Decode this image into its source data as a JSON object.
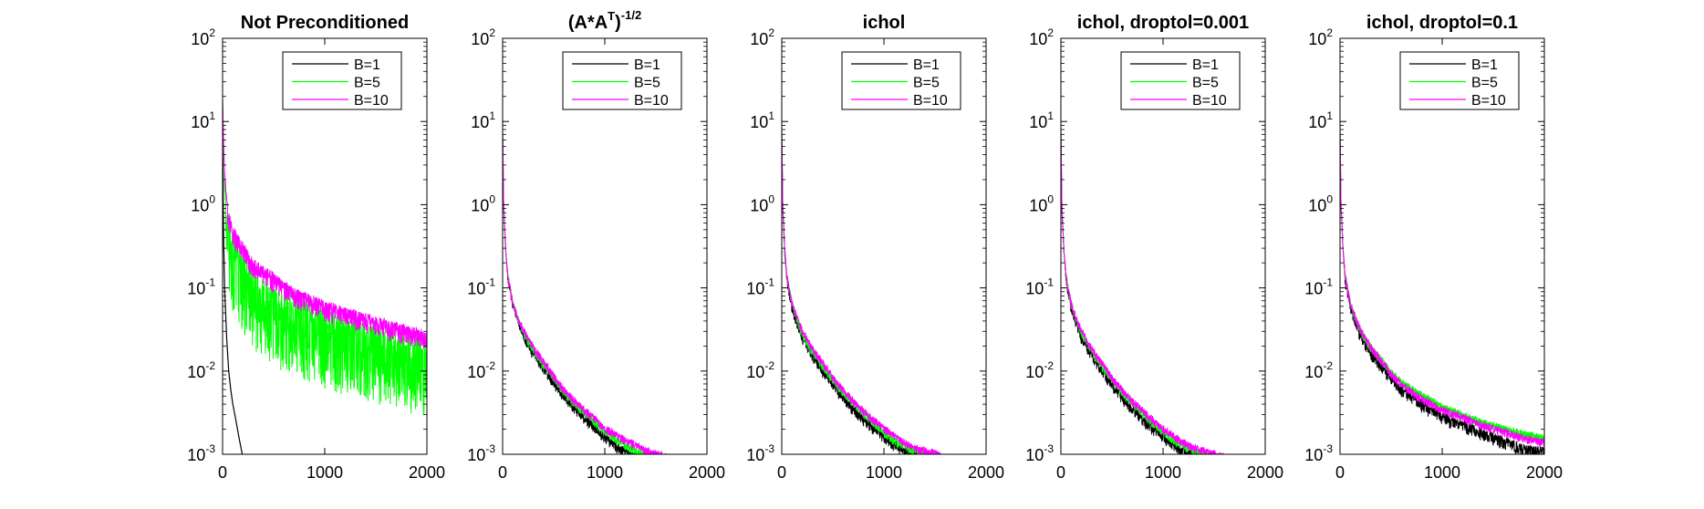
{
  "chart_data": [
    {
      "type": "line",
      "title": "Not Preconditioned",
      "yscale": "log",
      "xlim": [
        0,
        2000
      ],
      "ylim": [
        0.001,
        100
      ],
      "xticks": [
        "0",
        "1000",
        "2000"
      ],
      "yticks": [
        "10^2",
        "10^1",
        "10^0",
        "10^-1",
        "10^-2",
        "10^-3"
      ],
      "legend": {
        "position": "top-right",
        "entries": [
          "B=1",
          "B=5",
          "B=10"
        ]
      },
      "series": [
        {
          "name": "B=1",
          "color": "#000000",
          "x": [
            0,
            5,
            10,
            20,
            40,
            60,
            80,
            100,
            120,
            140,
            160,
            180,
            200
          ],
          "y": [
            10,
            1.5,
            0.4,
            0.1,
            0.025,
            0.01,
            0.006,
            0.004,
            0.003,
            0.0022,
            0.0016,
            0.0012,
            0.0009
          ],
          "noisy": false
        },
        {
          "name": "B=5",
          "color": "#00ff00",
          "x": [
            0,
            5,
            20,
            50,
            100,
            200,
            300,
            500,
            700,
            1000,
            1500,
            2000
          ],
          "y": [
            20,
            10,
            2.5,
            0.8,
            0.45,
            0.25,
            0.15,
            0.1,
            0.08,
            0.055,
            0.035,
            0.025
          ],
          "noisy": true,
          "dips": 1.0
        },
        {
          "name": "B=10",
          "color": "#ff00ff",
          "x": [
            0,
            5,
            20,
            50,
            100,
            200,
            300,
            500,
            700,
            1000,
            1500,
            2000
          ],
          "y": [
            20,
            10,
            2.5,
            0.9,
            0.55,
            0.35,
            0.22,
            0.15,
            0.1,
            0.07,
            0.045,
            0.03
          ],
          "noisy": true,
          "dips": 0.25
        }
      ]
    },
    {
      "type": "line",
      "title": "(A*A^T)^-1/2",
      "title_parts": {
        "base1": "(A*A",
        "sup1": "T",
        "base2": ")",
        "sup2": "-1/2"
      },
      "yscale": "log",
      "xlim": [
        0,
        2000
      ],
      "ylim": [
        0.001,
        100
      ],
      "xticks": [
        "0",
        "1000",
        "2000"
      ],
      "yticks": [
        "10^2",
        "10^1",
        "10^0",
        "10^-1",
        "10^-2",
        "10^-3"
      ],
      "legend": {
        "position": "top-right",
        "entries": [
          "B=1",
          "B=5",
          "B=10"
        ]
      },
      "series": [
        {
          "name": "B=1",
          "color": "#000000",
          "x": [
            0,
            10,
            30,
            50,
            100,
            150,
            200,
            300,
            400,
            500,
            600,
            700,
            800,
            900,
            1000,
            1100,
            1200,
            1300,
            1350
          ],
          "y": [
            8,
            1.0,
            0.3,
            0.15,
            0.07,
            0.045,
            0.03,
            0.018,
            0.012,
            0.008,
            0.0055,
            0.004,
            0.003,
            0.0023,
            0.0018,
            0.0014,
            0.0012,
            0.001,
            0.001
          ],
          "noisy": true,
          "dips": 0.12
        },
        {
          "name": "B=5",
          "color": "#00ff00",
          "x": [
            0,
            10,
            30,
            50,
            100,
            150,
            200,
            300,
            400,
            500,
            600,
            700,
            800,
            900,
            1000,
            1100,
            1200,
            1300,
            1400,
            1500,
            1550
          ],
          "y": [
            8,
            1.0,
            0.3,
            0.15,
            0.07,
            0.045,
            0.032,
            0.02,
            0.013,
            0.009,
            0.006,
            0.0045,
            0.0035,
            0.0027,
            0.002,
            0.0017,
            0.0014,
            0.0012,
            0.0011,
            0.001,
            0.001
          ],
          "noisy": true,
          "dips": 0.1
        },
        {
          "name": "B=10",
          "color": "#ff00ff",
          "x": [
            0,
            10,
            30,
            50,
            100,
            150,
            200,
            300,
            400,
            500,
            600,
            700,
            800,
            900,
            1000,
            1100,
            1200,
            1300,
            1400,
            1500,
            1600
          ],
          "y": [
            8,
            1.0,
            0.3,
            0.15,
            0.07,
            0.047,
            0.034,
            0.021,
            0.014,
            0.0095,
            0.0065,
            0.0048,
            0.0037,
            0.0029,
            0.0022,
            0.0019,
            0.0016,
            0.0014,
            0.0012,
            0.0011,
            0.001
          ],
          "noisy": true,
          "dips": 0.1
        }
      ]
    },
    {
      "type": "line",
      "title": "ichol",
      "yscale": "log",
      "xlim": [
        0,
        2000
      ],
      "ylim": [
        0.001,
        100
      ],
      "xticks": [
        "0",
        "1000",
        "2000"
      ],
      "yticks": [
        "10^2",
        "10^1",
        "10^0",
        "10^-1",
        "10^-2",
        "10^-3"
      ],
      "legend": {
        "position": "top-right",
        "entries": [
          "B=1",
          "B=5",
          "B=10"
        ]
      },
      "series": [
        {
          "name": "B=1",
          "color": "#000000",
          "x": [
            0,
            10,
            30,
            50,
            100,
            150,
            200,
            300,
            400,
            500,
            600,
            700,
            800,
            900,
            1000,
            1100,
            1200,
            1300,
            1400
          ],
          "y": [
            8,
            0.9,
            0.28,
            0.14,
            0.065,
            0.042,
            0.028,
            0.017,
            0.011,
            0.0075,
            0.0052,
            0.0038,
            0.0029,
            0.0022,
            0.0018,
            0.0014,
            0.0012,
            0.0011,
            0.001
          ],
          "noisy": true,
          "dips": 0.12
        },
        {
          "name": "B=5",
          "color": "#00ff00",
          "x": [
            0,
            10,
            30,
            50,
            100,
            150,
            200,
            300,
            400,
            500,
            600,
            700,
            800,
            900,
            1000,
            1100,
            1200,
            1300,
            1400,
            1500,
            1550
          ],
          "y": [
            8,
            1.0,
            0.3,
            0.15,
            0.07,
            0.045,
            0.031,
            0.019,
            0.0125,
            0.0085,
            0.006,
            0.0045,
            0.0034,
            0.0026,
            0.002,
            0.0016,
            0.0014,
            0.0012,
            0.0011,
            0.001,
            0.001
          ],
          "noisy": true,
          "dips": 0.1
        },
        {
          "name": "B=10",
          "color": "#ff00ff",
          "x": [
            0,
            10,
            30,
            50,
            100,
            150,
            200,
            300,
            400,
            500,
            600,
            700,
            800,
            900,
            1000,
            1100,
            1200,
            1300,
            1400,
            1500,
            1600
          ],
          "y": [
            8,
            1.0,
            0.3,
            0.15,
            0.07,
            0.047,
            0.033,
            0.02,
            0.0135,
            0.009,
            0.0063,
            0.0047,
            0.0036,
            0.0028,
            0.0022,
            0.0018,
            0.0015,
            0.0013,
            0.0012,
            0.0011,
            0.001
          ],
          "noisy": true,
          "dips": 0.1
        }
      ]
    },
    {
      "type": "line",
      "title": "ichol, droptol=0.001",
      "yscale": "log",
      "xlim": [
        0,
        2000
      ],
      "ylim": [
        0.001,
        100
      ],
      "xticks": [
        "0",
        "1000",
        "2000"
      ],
      "yticks": [
        "10^2",
        "10^1",
        "10^0",
        "10^-1",
        "10^-2",
        "10^-3"
      ],
      "legend": {
        "position": "top-right",
        "entries": [
          "B=1",
          "B=5",
          "B=10"
        ]
      },
      "series": [
        {
          "name": "B=1",
          "color": "#000000",
          "x": [
            0,
            10,
            30,
            50,
            100,
            150,
            200,
            300,
            400,
            500,
            600,
            700,
            800,
            900,
            1000,
            1100,
            1200,
            1300,
            1400
          ],
          "y": [
            8,
            0.9,
            0.28,
            0.14,
            0.065,
            0.042,
            0.028,
            0.017,
            0.011,
            0.0075,
            0.0052,
            0.0038,
            0.0029,
            0.0022,
            0.0018,
            0.0014,
            0.0012,
            0.0011,
            0.001
          ],
          "noisy": true,
          "dips": 0.12
        },
        {
          "name": "B=5",
          "color": "#00ff00",
          "x": [
            0,
            10,
            30,
            50,
            100,
            150,
            200,
            300,
            400,
            500,
            600,
            700,
            800,
            900,
            1000,
            1100,
            1200,
            1300,
            1400,
            1500,
            1550
          ],
          "y": [
            8,
            1.0,
            0.3,
            0.15,
            0.07,
            0.045,
            0.031,
            0.019,
            0.0125,
            0.0085,
            0.006,
            0.0045,
            0.0034,
            0.0026,
            0.002,
            0.0016,
            0.0014,
            0.0012,
            0.0011,
            0.001,
            0.001
          ],
          "noisy": true,
          "dips": 0.1
        },
        {
          "name": "B=10",
          "color": "#ff00ff",
          "x": [
            0,
            10,
            30,
            50,
            100,
            150,
            200,
            300,
            400,
            500,
            600,
            700,
            800,
            900,
            1000,
            1100,
            1200,
            1300,
            1400,
            1500,
            1600
          ],
          "y": [
            8,
            1.0,
            0.3,
            0.15,
            0.07,
            0.047,
            0.033,
            0.02,
            0.0135,
            0.009,
            0.0063,
            0.0047,
            0.0036,
            0.0028,
            0.0022,
            0.0018,
            0.0015,
            0.0013,
            0.0012,
            0.0011,
            0.001
          ],
          "noisy": true,
          "dips": 0.1
        }
      ]
    },
    {
      "type": "line",
      "title": "ichol, droptol=0.1",
      "yscale": "log",
      "xlim": [
        0,
        2000
      ],
      "ylim": [
        0.001,
        100
      ],
      "xticks": [
        "0",
        "1000",
        "2000"
      ],
      "yticks": [
        "10^2",
        "10^1",
        "10^0",
        "10^-1",
        "10^-2",
        "10^-3"
      ],
      "legend": {
        "position": "top-right",
        "entries": [
          "B=1",
          "B=5",
          "B=10"
        ]
      },
      "series": [
        {
          "name": "B=1",
          "color": "#000000",
          "x": [
            0,
            10,
            30,
            50,
            100,
            150,
            200,
            300,
            400,
            500,
            600,
            800,
            1000,
            1200,
            1400,
            1600,
            1800,
            2000
          ],
          "y": [
            8,
            1.0,
            0.3,
            0.15,
            0.07,
            0.045,
            0.03,
            0.019,
            0.013,
            0.009,
            0.0068,
            0.0045,
            0.0032,
            0.0025,
            0.002,
            0.0016,
            0.0013,
            0.0012
          ],
          "noisy": true,
          "dips": 0.15
        },
        {
          "name": "B=5",
          "color": "#00ff00",
          "x": [
            0,
            10,
            30,
            50,
            100,
            150,
            200,
            300,
            400,
            500,
            600,
            800,
            1000,
            1200,
            1400,
            1600,
            1800,
            2000
          ],
          "y": [
            8,
            1.0,
            0.3,
            0.15,
            0.072,
            0.047,
            0.033,
            0.021,
            0.015,
            0.0105,
            0.008,
            0.0055,
            0.004,
            0.0032,
            0.0026,
            0.0022,
            0.0019,
            0.0017
          ],
          "noisy": true,
          "dips": 0.1
        },
        {
          "name": "B=10",
          "color": "#ff00ff",
          "x": [
            0,
            10,
            30,
            50,
            100,
            150,
            200,
            300,
            400,
            500,
            600,
            800,
            1000,
            1200,
            1400,
            1600,
            1800,
            2000
          ],
          "y": [
            8,
            1.0,
            0.3,
            0.15,
            0.072,
            0.048,
            0.034,
            0.021,
            0.0145,
            0.01,
            0.0075,
            0.005,
            0.0037,
            0.003,
            0.0024,
            0.002,
            0.0017,
            0.0015
          ],
          "noisy": true,
          "dips": 0.1
        }
      ]
    }
  ]
}
